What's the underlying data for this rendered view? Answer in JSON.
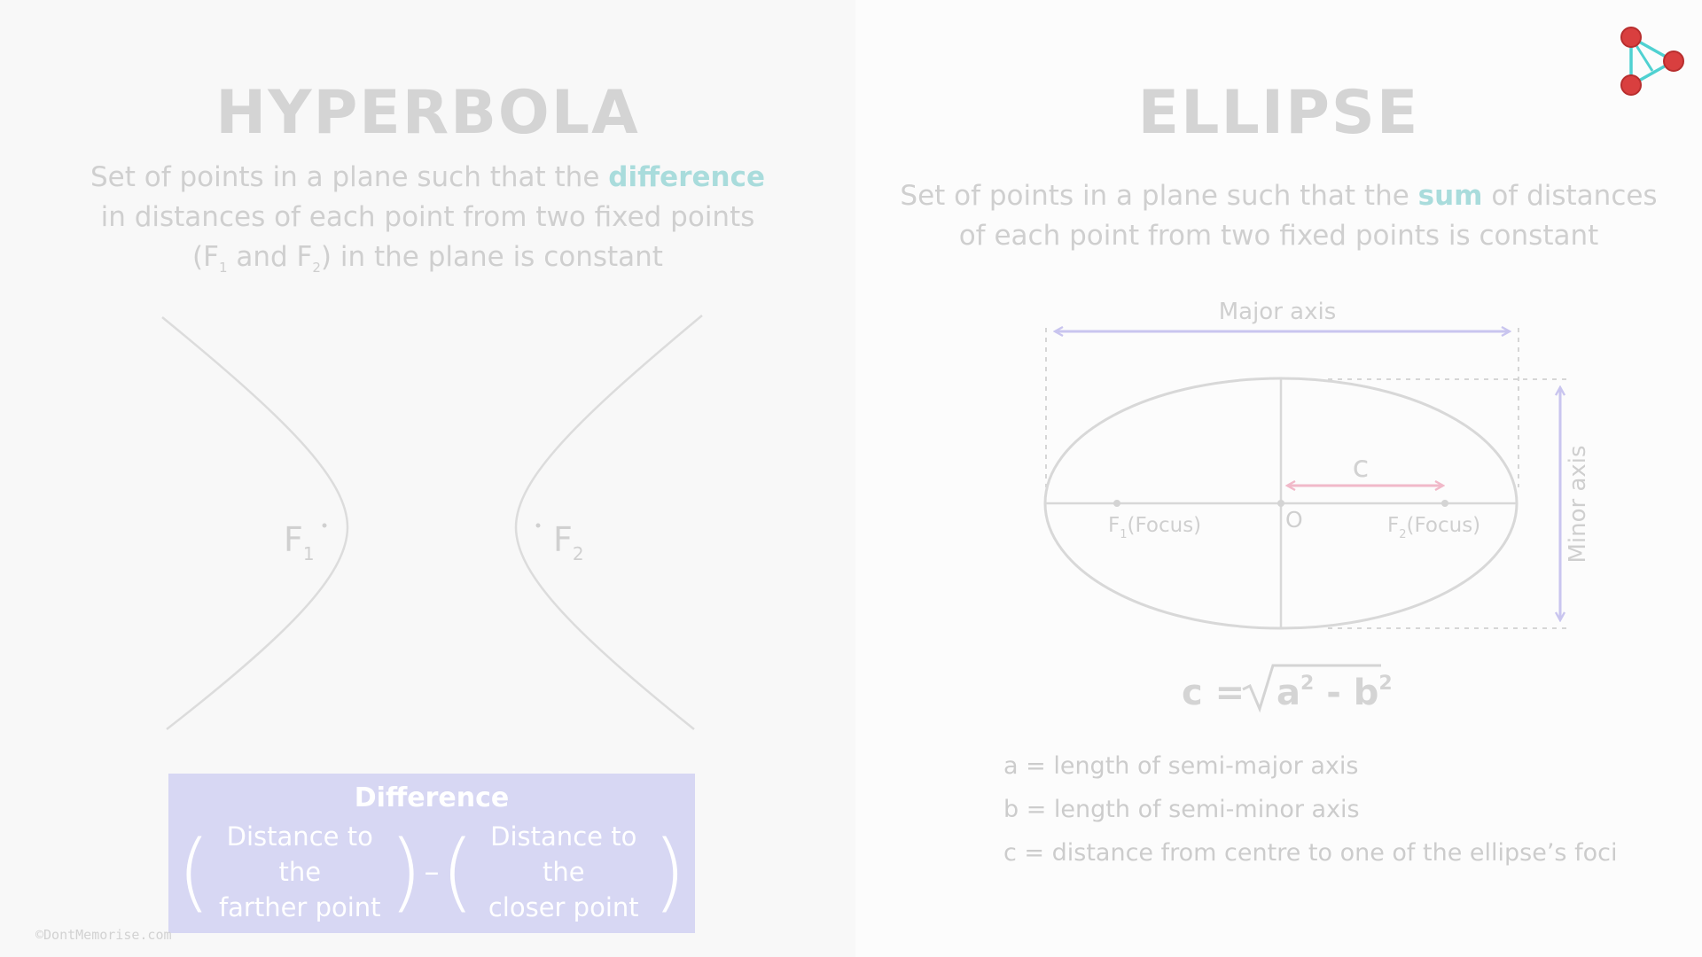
{
  "hyperbola": {
    "title": "HYPERBOLA",
    "definition": {
      "line1_before": "Set of points in a plane such that the ",
      "line1_highlight": "difference",
      "line2": "in distances of each point from two fixed points",
      "line3_a": "(F",
      "line3_sub1": "1",
      "line3_b": " and F",
      "line3_sub2": "2",
      "line3_c": ") in the plane is constant"
    },
    "focus1": {
      "letter": "F",
      "sub": "1"
    },
    "focus2": {
      "letter": "F",
      "sub": "2"
    },
    "difference_box": {
      "title": "Difference",
      "term1_line1": "Distance to the",
      "term1_line2": "farther point",
      "operator": "–",
      "term2_line1": "Distance to the",
      "term2_line2": "closer point"
    }
  },
  "ellipse": {
    "title": "ELLIPSE",
    "definition": {
      "line1_before": "Set of points in a plane such that the ",
      "line1_highlight": "sum",
      "line1_after": " of distances",
      "line2": "of each point from two fixed points is constant"
    },
    "major_axis_label": "Major axis",
    "minor_axis_label": "Minor axis",
    "c_label": "c",
    "center_label": "O",
    "focus1": {
      "letter": "F",
      "sub": "1",
      "tag": "(Focus)"
    },
    "focus2": {
      "letter": "F",
      "sub": "2",
      "tag": "(Focus)"
    },
    "formula": {
      "lhs": "c = ",
      "a": "a",
      "b": "b",
      "exp": "2",
      "minus": " - "
    },
    "legend": [
      "a = length of semi-major axis",
      "b = length of semi-minor axis",
      "c = distance from centre to one of the ellipse’s foci"
    ]
  },
  "copyright": "©DontMemorise.com",
  "colors": {
    "accent_teal": "#a9dcdc",
    "axis_purple": "#c9c5ef",
    "c_pink": "#f1b9c9",
    "box_purple": "#d7d7f3",
    "logo_red": "#d93f3f",
    "logo_teal": "#4fd1d1"
  },
  "icons": {
    "logo": "dontmemorise-play-logo-icon"
  }
}
